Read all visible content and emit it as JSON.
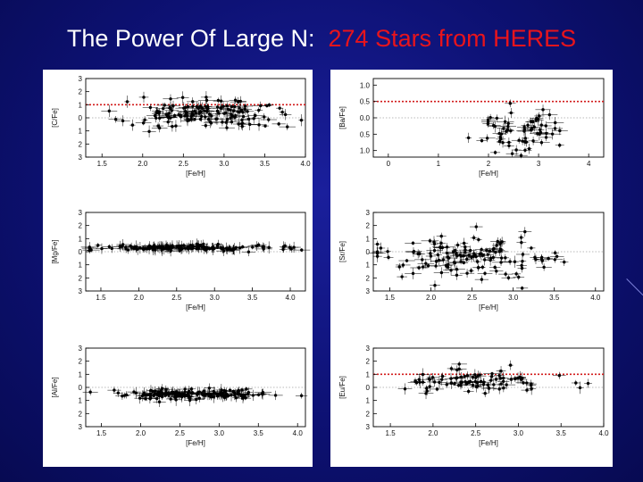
{
  "slide": {
    "title_prefix": "The Power Of Large N:",
    "title_highlight": "274 Stars from HERES",
    "colors": {
      "background": "#0d1173",
      "title": "#ffffff",
      "highlight": "#e8141c"
    }
  },
  "chart_data": [
    {
      "type": "scatter",
      "panel": "left",
      "row": 0,
      "ylabel": "[C/Fe]",
      "xlabel": "[Fe/H]",
      "xlim": [
        -4.0,
        -1.3
      ],
      "x_ticks": [
        -4.0,
        -3.5,
        -3.0,
        -2.5,
        -2.0,
        -1.5
      ],
      "x_tick_labels": [
        "4.0",
        "3.5",
        "3.0",
        "2.5",
        "2.0",
        "1.5"
      ],
      "ylim": [
        -3,
        3
      ],
      "y_ticks": [
        -3,
        -2,
        -1,
        0,
        1,
        2,
        3
      ],
      "y_tick_labels": [
        "3",
        "2",
        "1",
        "0",
        "1",
        "2",
        "3"
      ],
      "ref_line": 1.0,
      "zero_line": true,
      "x_center": -2.8,
      "x_spread": 0.5,
      "y_center": 0.3,
      "y_spread": 0.55,
      "n_points": 150
    },
    {
      "type": "scatter",
      "panel": "left",
      "row": 1,
      "ylabel": "[Mg/Fe]",
      "xlabel": "[Fe/H]",
      "xlim": [
        -4.2,
        -1.3
      ],
      "x_ticks": [
        -4.0,
        -3.5,
        -3.0,
        -2.5,
        -2.0,
        -1.5
      ],
      "x_tick_labels": [
        "4.0",
        "3.5",
        "3.0",
        "2.5",
        "2.0",
        "1.5"
      ],
      "ylim": [
        -3,
        3
      ],
      "y_ticks": [
        -3,
        -2,
        -1,
        0,
        1,
        2,
        3
      ],
      "y_tick_labels": [
        "3",
        "2",
        "1",
        "0",
        "1",
        "2",
        "3"
      ],
      "ref_line": null,
      "zero_line": true,
      "x_center": -2.6,
      "x_spread": 0.6,
      "y_center": 0.3,
      "y_spread": 0.12,
      "n_points": 150
    },
    {
      "type": "scatter",
      "panel": "left",
      "row": 2,
      "ylabel": "[Al/Fe]",
      "xlabel": "[Fe/H]",
      "xlim": [
        -4.1,
        -1.3
      ],
      "x_ticks": [
        -4.0,
        -3.5,
        -3.0,
        -2.5,
        -2.0,
        -1.5
      ],
      "x_tick_labels": [
        "4.0",
        "3.5",
        "3.0",
        "2.5",
        "2.0",
        "1.5"
      ],
      "ylim": [
        -3,
        3
      ],
      "y_ticks": [
        -3,
        -2,
        -1,
        0,
        1,
        2,
        3
      ],
      "y_tick_labels": [
        "3",
        "2",
        "1",
        "0",
        "1",
        "2",
        "3"
      ],
      "ref_line": null,
      "zero_line": true,
      "x_center": -2.7,
      "x_spread": 0.5,
      "y_center": -0.5,
      "y_spread": 0.18,
      "n_points": 160
    },
    {
      "type": "scatter",
      "panel": "right",
      "row": 0,
      "ylabel": "[Ba/Fe]",
      "xlabel": "[Fe/H]",
      "xlim": [
        -4.3,
        0.3
      ],
      "x_ticks": [
        -4,
        -3,
        -2,
        -1,
        0
      ],
      "x_tick_labels": [
        "4",
        "3",
        "2",
        "1",
        "0"
      ],
      "ylim": [
        -1.2,
        1.2
      ],
      "y_ticks": [
        -1.0,
        -0.5,
        0.0,
        0.5,
        1.0
      ],
      "y_tick_labels": [
        "1.0",
        "0.5",
        "0.0",
        "0.5",
        "1.0"
      ],
      "ref_line": 0.5,
      "zero_line": true,
      "x_center": -2.6,
      "x_spread": 0.5,
      "y_center": -0.45,
      "y_spread": 0.35,
      "n_points": 70
    },
    {
      "type": "scatter",
      "panel": "right",
      "row": 1,
      "ylabel": "[Sr/Fe]",
      "xlabel": "[Fe/H]",
      "xlim": [
        -4.1,
        -1.3
      ],
      "x_ticks": [
        -4.0,
        -3.5,
        -3.0,
        -2.5,
        -2.0,
        -1.5
      ],
      "x_tick_labels": [
        "4.0",
        "3.5",
        "3.0",
        "2.5",
        "2.0",
        "1.5"
      ],
      "ylim": [
        -3,
        3
      ],
      "y_ticks": [
        -3,
        -2,
        -1,
        0,
        1,
        2,
        3
      ],
      "y_tick_labels": [
        "3",
        "2",
        "1",
        "0",
        "1",
        "2",
        "3"
      ],
      "ref_line": null,
      "zero_line": true,
      "x_center": -2.5,
      "x_spread": 0.55,
      "y_center": -0.4,
      "y_spread": 0.8,
      "n_points": 140
    },
    {
      "type": "scatter",
      "panel": "right",
      "row": 2,
      "ylabel": "[Eu/Fe]",
      "xlabel": "[Fe/H]",
      "xlim": [
        -4.0,
        -1.3
      ],
      "x_ticks": [
        -4.0,
        -3.5,
        -3.0,
        -2.5,
        -2.0,
        -1.5
      ],
      "x_tick_labels": [
        "4.0",
        "3.5",
        "3.0",
        "2.5",
        "2.0",
        "1.5"
      ],
      "ylim": [
        -3,
        3
      ],
      "y_ticks": [
        -3,
        -2,
        -1,
        0,
        1,
        2,
        3
      ],
      "y_tick_labels": [
        "3",
        "2",
        "1",
        "0",
        "1",
        "2",
        "3"
      ],
      "ref_line": 1.0,
      "zero_line": true,
      "x_center": -2.5,
      "x_spread": 0.45,
      "y_center": 0.5,
      "y_spread": 0.45,
      "n_points": 90
    }
  ]
}
